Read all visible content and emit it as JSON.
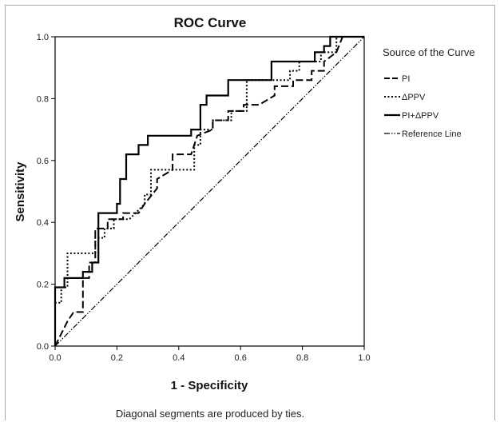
{
  "chart_data": {
    "type": "line",
    "title": "ROC Curve",
    "xlabel": "1 - Specificity",
    "ylabel": "Sensitivity",
    "footnote": "Diagonal segments are produced by ties.",
    "xlim": [
      0,
      1
    ],
    "ylim": [
      0,
      1
    ],
    "xticks": [
      "0.0",
      "0.2",
      "0.4",
      "0.6",
      "0.8",
      "1.0"
    ],
    "yticks": [
      "0.0",
      "0.2",
      "0.4",
      "0.6",
      "0.8",
      "1.0"
    ],
    "grid": false,
    "legend_title": "Source of the Curve",
    "legend_position": "right",
    "series": [
      {
        "name": "PI",
        "style": "dashed",
        "color": "#000000",
        "points": [
          [
            0,
            0
          ],
          [
            0.04,
            0.08
          ],
          [
            0.06,
            0.11
          ],
          [
            0.09,
            0.11
          ],
          [
            0.09,
            0.22
          ],
          [
            0.11,
            0.22
          ],
          [
            0.11,
            0.27
          ],
          [
            0.13,
            0.27
          ],
          [
            0.13,
            0.38
          ],
          [
            0.17,
            0.38
          ],
          [
            0.17,
            0.41
          ],
          [
            0.22,
            0.41
          ],
          [
            0.22,
            0.43
          ],
          [
            0.27,
            0.43
          ],
          [
            0.29,
            0.46
          ],
          [
            0.33,
            0.51
          ],
          [
            0.33,
            0.54
          ],
          [
            0.38,
            0.57
          ],
          [
            0.38,
            0.62
          ],
          [
            0.44,
            0.62
          ],
          [
            0.46,
            0.68
          ],
          [
            0.51,
            0.7
          ],
          [
            0.51,
            0.73
          ],
          [
            0.56,
            0.73
          ],
          [
            0.56,
            0.76
          ],
          [
            0.61,
            0.76
          ],
          [
            0.61,
            0.78
          ],
          [
            0.66,
            0.78
          ],
          [
            0.71,
            0.81
          ],
          [
            0.71,
            0.84
          ],
          [
            0.77,
            0.84
          ],
          [
            0.77,
            0.86
          ],
          [
            0.83,
            0.86
          ],
          [
            0.83,
            0.89
          ],
          [
            0.87,
            0.89
          ],
          [
            0.87,
            0.92
          ],
          [
            0.91,
            0.95
          ],
          [
            0.93,
            1.0
          ],
          [
            1.0,
            1.0
          ]
        ]
      },
      {
        "name": "ΔPPV",
        "style": "dotted",
        "color": "#000000",
        "points": [
          [
            0,
            0
          ],
          [
            0,
            0.14
          ],
          [
            0.02,
            0.14
          ],
          [
            0.02,
            0.19
          ],
          [
            0.04,
            0.19
          ],
          [
            0.04,
            0.3
          ],
          [
            0.13,
            0.3
          ],
          [
            0.13,
            0.35
          ],
          [
            0.16,
            0.35
          ],
          [
            0.16,
            0.38
          ],
          [
            0.19,
            0.38
          ],
          [
            0.19,
            0.41
          ],
          [
            0.24,
            0.41
          ],
          [
            0.29,
            0.46
          ],
          [
            0.29,
            0.49
          ],
          [
            0.31,
            0.49
          ],
          [
            0.31,
            0.57
          ],
          [
            0.45,
            0.57
          ],
          [
            0.45,
            0.65
          ],
          [
            0.47,
            0.65
          ],
          [
            0.47,
            0.7
          ],
          [
            0.51,
            0.7
          ],
          [
            0.51,
            0.73
          ],
          [
            0.57,
            0.73
          ],
          [
            0.57,
            0.76
          ],
          [
            0.62,
            0.76
          ],
          [
            0.62,
            0.86
          ],
          [
            0.76,
            0.86
          ],
          [
            0.76,
            0.89
          ],
          [
            0.79,
            0.89
          ],
          [
            0.79,
            0.92
          ],
          [
            0.86,
            0.92
          ],
          [
            0.86,
            0.95
          ],
          [
            0.91,
            0.95
          ],
          [
            0.91,
            1.0
          ],
          [
            1.0,
            1.0
          ]
        ]
      },
      {
        "name": "PI+ΔPPV",
        "style": "solid",
        "color": "#000000",
        "points": [
          [
            0,
            0
          ],
          [
            0,
            0.19
          ],
          [
            0.03,
            0.19
          ],
          [
            0.03,
            0.22
          ],
          [
            0.09,
            0.22
          ],
          [
            0.09,
            0.24
          ],
          [
            0.12,
            0.24
          ],
          [
            0.12,
            0.27
          ],
          [
            0.14,
            0.27
          ],
          [
            0.14,
            0.43
          ],
          [
            0.2,
            0.43
          ],
          [
            0.2,
            0.46
          ],
          [
            0.21,
            0.46
          ],
          [
            0.21,
            0.54
          ],
          [
            0.23,
            0.54
          ],
          [
            0.23,
            0.62
          ],
          [
            0.27,
            0.62
          ],
          [
            0.27,
            0.65
          ],
          [
            0.3,
            0.65
          ],
          [
            0.3,
            0.68
          ],
          [
            0.44,
            0.68
          ],
          [
            0.44,
            0.7
          ],
          [
            0.47,
            0.7
          ],
          [
            0.47,
            0.78
          ],
          [
            0.49,
            0.78
          ],
          [
            0.49,
            0.81
          ],
          [
            0.56,
            0.81
          ],
          [
            0.56,
            0.86
          ],
          [
            0.7,
            0.86
          ],
          [
            0.7,
            0.92
          ],
          [
            0.84,
            0.92
          ],
          [
            0.84,
            0.95
          ],
          [
            0.87,
            0.95
          ],
          [
            0.87,
            0.97
          ],
          [
            0.89,
            0.97
          ],
          [
            0.89,
            1.0
          ],
          [
            1.0,
            1.0
          ]
        ]
      },
      {
        "name": "Reference Line",
        "style": "dash-dot-dot",
        "color": "#000000",
        "points": [
          [
            0,
            0
          ],
          [
            1,
            1
          ]
        ]
      }
    ]
  }
}
